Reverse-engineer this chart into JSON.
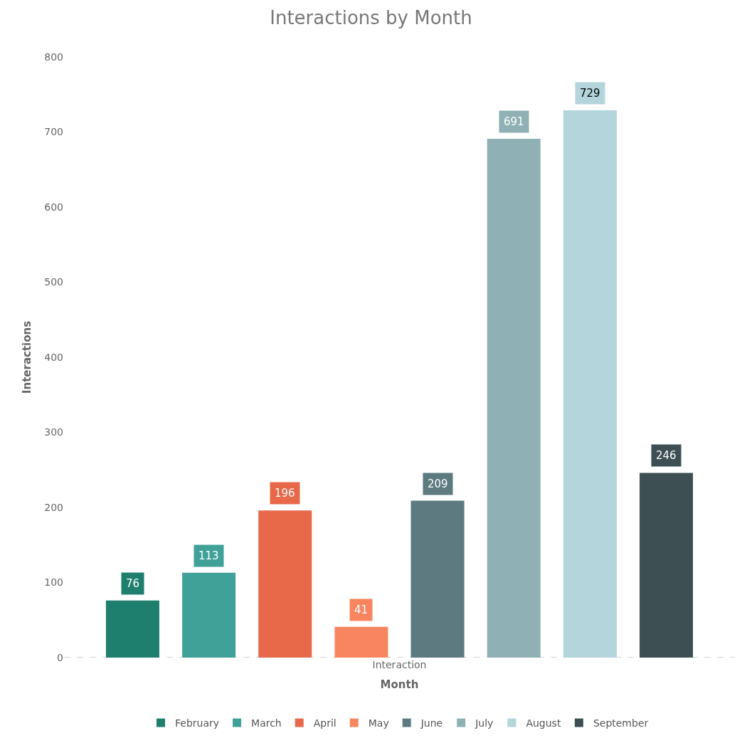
{
  "chart_data": {
    "type": "bar",
    "title": "Interactions by Month",
    "xlabel": "Month",
    "ylabel": "Interactions",
    "categories": [
      "Interaction"
    ],
    "series": [
      {
        "name": "February",
        "color": "#1e7f6e",
        "values": [
          76
        ]
      },
      {
        "name": "March",
        "color": "#3fa198",
        "values": [
          113
        ]
      },
      {
        "name": "April",
        "color": "#e8694a",
        "values": [
          196
        ]
      },
      {
        "name": "May",
        "color": "#f98560",
        "values": [
          41
        ]
      },
      {
        "name": "June",
        "color": "#5c7a80",
        "values": [
          209
        ]
      },
      {
        "name": "July",
        "color": "#8fb0b5",
        "values": [
          691
        ]
      },
      {
        "name": "August",
        "color": "#b3d5db",
        "values": [
          729
        ]
      },
      {
        "name": "September",
        "color": "#3e4f53",
        "values": [
          246
        ]
      }
    ],
    "ylim": [
      0,
      800
    ],
    "yticks": [
      0,
      100,
      200,
      300,
      400,
      500,
      600,
      700,
      800
    ],
    "grid": false,
    "legend": "bottom",
    "data_labels": true
  }
}
